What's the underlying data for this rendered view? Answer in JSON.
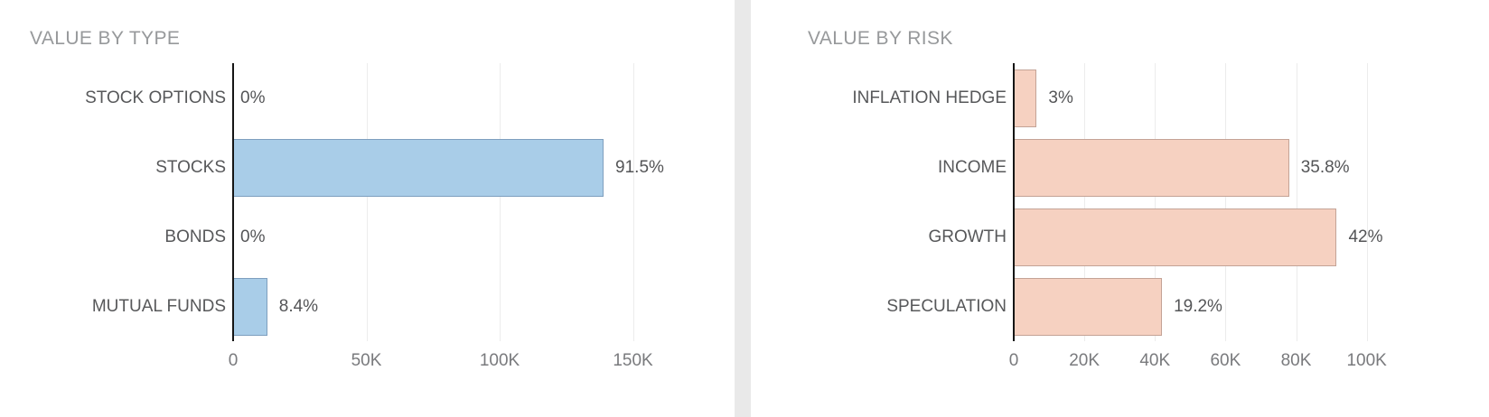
{
  "chart_data": [
    {
      "type": "bar",
      "orientation": "horizontal",
      "title": "VALUE BY TYPE",
      "categories": [
        "STOCK OPTIONS",
        "STOCKS",
        "BONDS",
        "MUTUAL FUNDS"
      ],
      "values_k": [
        0,
        139,
        0,
        12.8
      ],
      "value_labels": [
        "0%",
        "91.5%",
        "0%",
        "8.4%"
      ],
      "x_ticks": [
        {
          "value": 0,
          "label": "0"
        },
        {
          "value": 50,
          "label": "50K"
        },
        {
          "value": 100,
          "label": "100K"
        },
        {
          "value": 150,
          "label": "150K"
        }
      ],
      "x_max_k": 160,
      "xlabel": "",
      "ylabel": "",
      "grid": true,
      "legend": false,
      "bar_fill": "#a9cde8",
      "bar_border": "#7e9fbe"
    },
    {
      "type": "bar",
      "orientation": "horizontal",
      "title": "VALUE BY RISK",
      "categories": [
        "INFLATION HEDGE",
        "INCOME",
        "GROWTH",
        "SPECULATION"
      ],
      "values_k": [
        6.5,
        78,
        91.5,
        42
      ],
      "value_labels": [
        "3%",
        "35.8%",
        "42%",
        "19.2%"
      ],
      "x_ticks": [
        {
          "value": 0,
          "label": "0"
        },
        {
          "value": 20,
          "label": "20K"
        },
        {
          "value": 40,
          "label": "40K"
        },
        {
          "value": 60,
          "label": "60K"
        },
        {
          "value": 80,
          "label": "80K"
        },
        {
          "value": 100,
          "label": "100K"
        }
      ],
      "x_max_k": 107,
      "xlabel": "",
      "ylabel": "",
      "grid": true,
      "legend": false,
      "bar_fill": "#f6d1c1",
      "bar_border": "#c4a396"
    }
  ]
}
